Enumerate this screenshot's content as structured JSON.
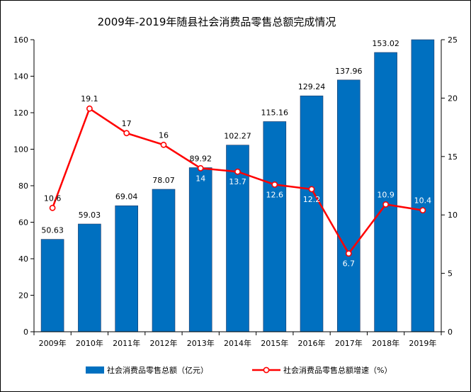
{
  "chart_data": {
    "type": "bar",
    "title": "2009年-2019年随县社会消费品零售总额完成情况",
    "categories": [
      "2009年",
      "2010年",
      "2011年",
      "2012年",
      "2013年",
      "2014年",
      "2015年",
      "2016年",
      "2017年",
      "2018年",
      "2019年"
    ],
    "series": [
      {
        "name": "社会消费品零售总额（亿元）",
        "type": "bar",
        "axis": "left",
        "color": "#0070C0",
        "values": [
          50.63,
          59.03,
          69.04,
          78.07,
          89.92,
          102.27,
          115.16,
          129.24,
          137.96,
          153.02,
          160
        ],
        "labels": [
          "50.63",
          "59.03",
          "69.04",
          "78.07",
          "89.92",
          "102.27",
          "115.16",
          "129.24",
          "137.96",
          "153.02",
          ""
        ]
      },
      {
        "name": "社会消费品零售总额增速（%）",
        "type": "line",
        "axis": "right",
        "color": "#FF0000",
        "values": [
          10.6,
          19.1,
          17,
          16,
          14,
          13.7,
          12.6,
          12.2,
          6.7,
          10.9,
          10.4
        ],
        "labels": [
          "10.6",
          "19.1",
          "17",
          "16",
          "14",
          "13.7",
          "12.6",
          "12.2",
          "6.7",
          "10.9",
          "10.4"
        ]
      }
    ],
    "y_left": {
      "min": 0,
      "max": 160,
      "ticks": [
        "0",
        "20",
        "40",
        "60",
        "80",
        "100",
        "120",
        "140",
        "160"
      ]
    },
    "y_right": {
      "min": 0,
      "max": 25,
      "ticks": [
        "0",
        "5",
        "10",
        "15",
        "20",
        "25"
      ]
    },
    "legend_position": "bottom",
    "grid": false
  }
}
